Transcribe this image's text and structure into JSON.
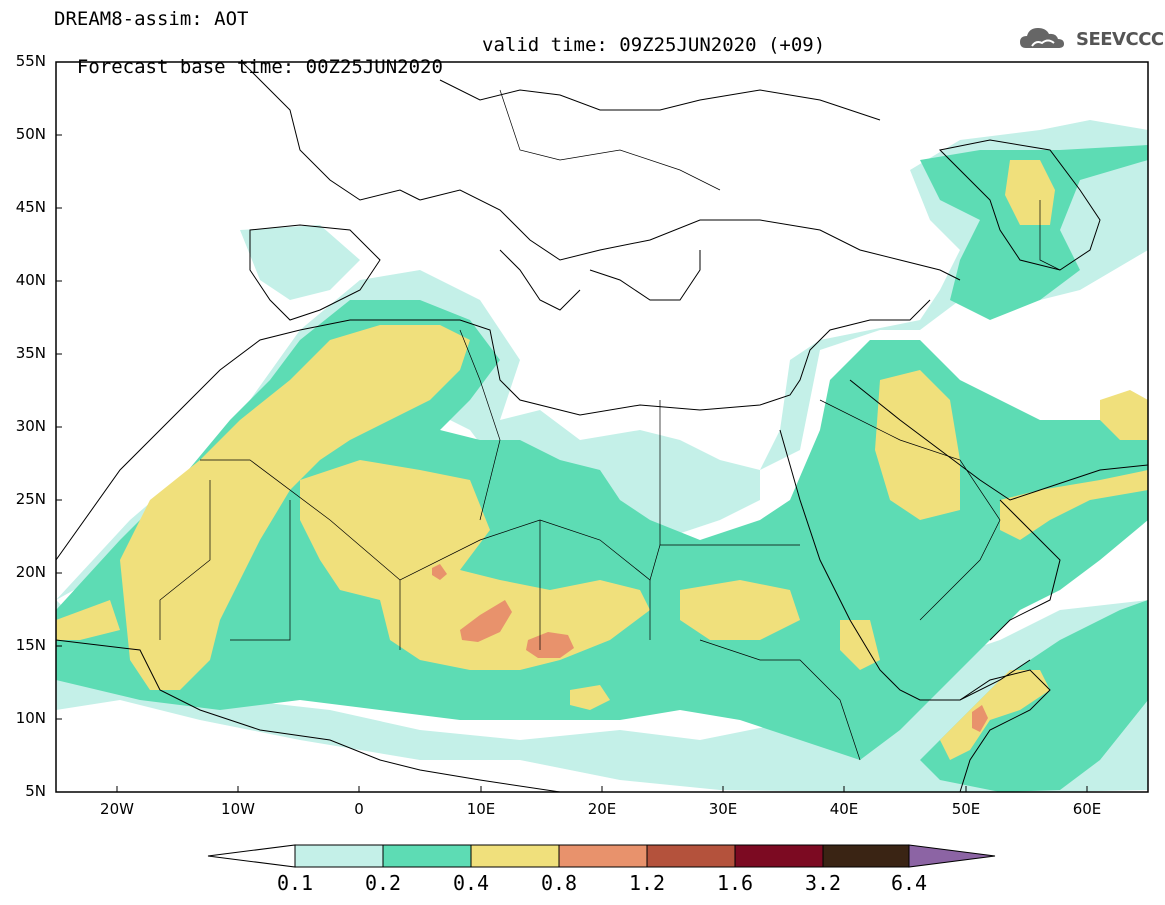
{
  "title": {
    "line1": "DREAM8-assim: AOT",
    "base": "Forecast base time: 00Z25JUN2020",
    "valid": "valid time: 09Z25JUN2020 (+09)"
  },
  "logo": {
    "text": "SEEVCCC",
    "icon": "cloud-icon"
  },
  "map": {
    "lat_labels": [
      "55N",
      "50N",
      "45N",
      "40N",
      "35N",
      "30N",
      "25N",
      "20N",
      "15N",
      "10N",
      "5N"
    ],
    "lon_labels": [
      "20W",
      "10W",
      "0",
      "10E",
      "20E",
      "30E",
      "40E",
      "50E",
      "60E"
    ],
    "extent": {
      "lon": [
        -25,
        65
      ],
      "lat": [
        5,
        55
      ]
    }
  },
  "colorbar": {
    "labels": [
      "0.1",
      "0.2",
      "0.4",
      "0.8",
      "1.2",
      "1.6",
      "3.2",
      "6.4"
    ],
    "colors": [
      "#ffffff",
      "#c4f0e8",
      "#5ddcb4",
      "#f0e07c",
      "#e8926c",
      "#b4523c",
      "#7c0a22",
      "#3a2414",
      "#8c64a4"
    ]
  }
}
